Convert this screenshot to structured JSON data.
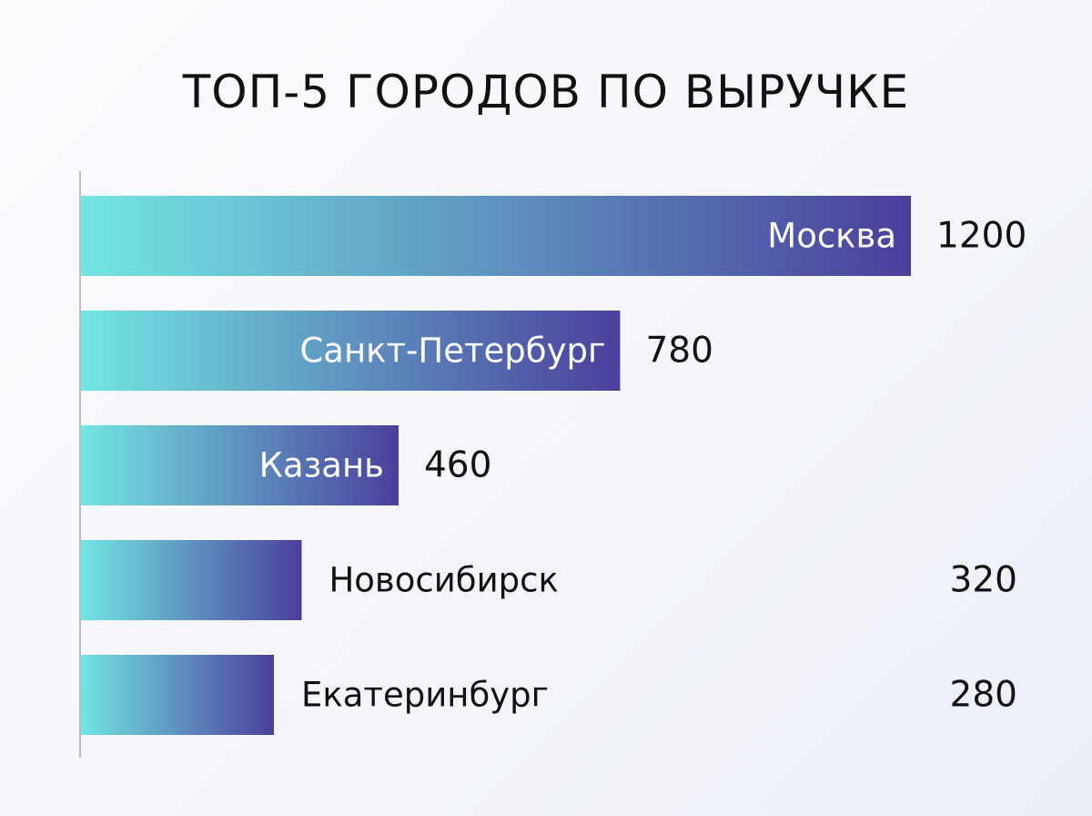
{
  "chart_data": {
    "type": "bar",
    "orientation": "horizontal",
    "title": "ТОП-5 ГОРОДОВ ПО ВЫРУЧКЕ",
    "categories": [
      "Москва",
      "Санкт-Петербург",
      "Казань",
      "Новосибирск",
      "Екатеринбург"
    ],
    "values": [
      1200,
      780,
      460,
      320,
      280
    ],
    "value_labels": [
      "1200",
      "780",
      "460",
      "320",
      "280"
    ],
    "xlim": [
      0,
      1200
    ],
    "grid": false,
    "legend": "none",
    "colors": {
      "bar_start": "#72e6e3",
      "bar_end": "#4b3f9c",
      "inside_label": "#ffffff",
      "outside_label": "#111111",
      "axis": "#b9bcc4"
    }
  }
}
